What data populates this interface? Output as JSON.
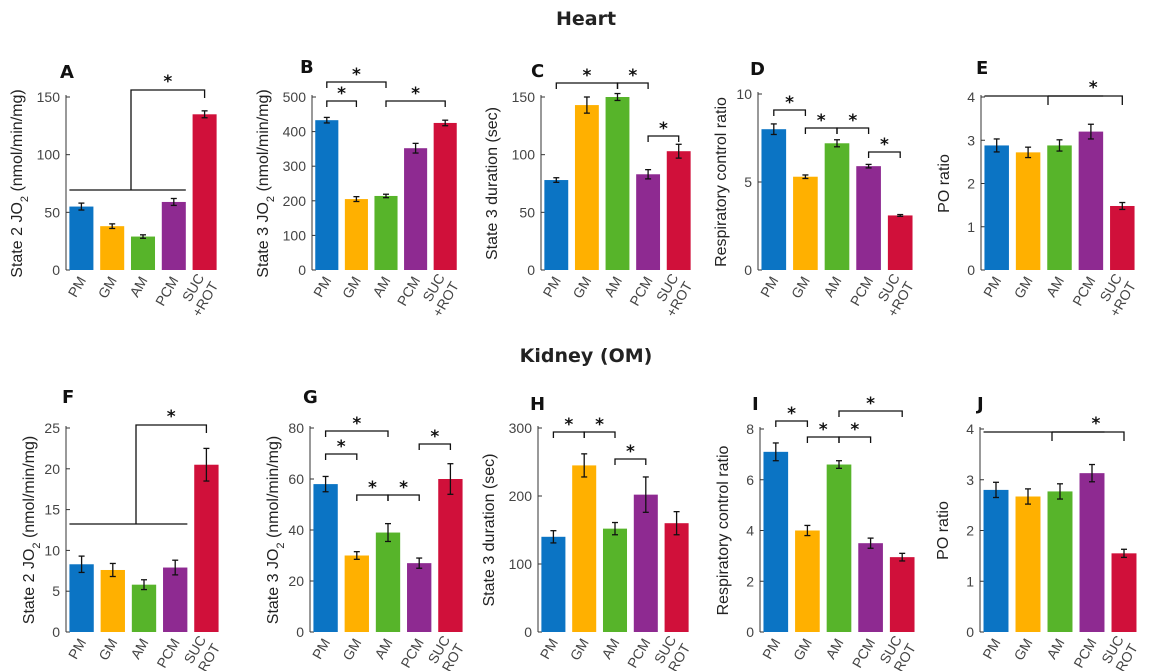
{
  "figure": {
    "heart_title": "Heart",
    "kidney_title": "Kidney (OM)"
  },
  "palette": {
    "PM": "#0b74c4",
    "GM": "#ffb000",
    "AM": "#57b42a",
    "PCM": "#8e2a91",
    "SUC": "#d0103a"
  },
  "chart_data": [
    {
      "id": "A",
      "type": "bar",
      "row": "heart",
      "ylabel": "State 2 JO2 (nmol/min/mg)",
      "categories": [
        "PM",
        "GM",
        "AM",
        "PCM",
        "SUC +ROT"
      ],
      "values": [
        55,
        38,
        29,
        59,
        135
      ],
      "errors": [
        3,
        2,
        1.5,
        3,
        3
      ],
      "ylim": [
        0,
        150
      ],
      "yticks": [
        0,
        50,
        100,
        150
      ],
      "annotations": [
        "*"
      ]
    },
    {
      "id": "B",
      "type": "bar",
      "row": "heart",
      "ylabel": "State 3 JO2 (nmol/min/mg)",
      "categories": [
        "PM",
        "GM",
        "AM",
        "PCM",
        "SUC +ROT"
      ],
      "values": [
        433,
        205,
        214,
        352,
        425
      ],
      "errors": [
        8,
        7,
        5,
        14,
        8
      ],
      "ylim": [
        0,
        500
      ],
      "yticks": [
        0,
        100,
        200,
        300,
        400,
        500
      ],
      "annotations": [
        "*",
        "*",
        "*"
      ]
    },
    {
      "id": "C",
      "type": "bar",
      "row": "heart",
      "ylabel": "State 3 duration (sec)",
      "categories": [
        "PM",
        "GM",
        "AM",
        "PCM",
        "SUC +ROT"
      ],
      "values": [
        78,
        143,
        150,
        83,
        103
      ],
      "errors": [
        2,
        7,
        3,
        4,
        6
      ],
      "ylim": [
        0,
        150
      ],
      "yticks": [
        0,
        50,
        100,
        150
      ],
      "annotations": [
        "*",
        "*",
        "*"
      ]
    },
    {
      "id": "D",
      "type": "bar",
      "row": "heart",
      "ylabel": "Respiratory control ratio",
      "categories": [
        "PM",
        "GM",
        "AM",
        "PCM",
        "SUC +ROT"
      ],
      "values": [
        8.0,
        5.3,
        7.2,
        5.9,
        3.1
      ],
      "errors": [
        0.3,
        0.1,
        0.2,
        0.1,
        0.05
      ],
      "ylim": [
        0,
        10
      ],
      "yticks": [
        0,
        5,
        10
      ],
      "annotations": [
        "*",
        "*",
        "*",
        "*"
      ]
    },
    {
      "id": "E",
      "type": "bar",
      "row": "heart",
      "ylabel": "PO ratio",
      "categories": [
        "PM",
        "GM",
        "AM",
        "PCM",
        "SUC +ROT"
      ],
      "values": [
        2.88,
        2.72,
        2.88,
        3.2,
        1.48
      ],
      "errors": [
        0.15,
        0.12,
        0.13,
        0.17,
        0.08
      ],
      "ylim": [
        0,
        4
      ],
      "yticks": [
        0,
        1,
        2,
        3,
        4
      ],
      "annotations": [
        "*"
      ]
    },
    {
      "id": "F",
      "type": "bar",
      "row": "kidney",
      "ylabel": "State 2 JO2 (nmol/min/mg)",
      "categories": [
        "PM",
        "GM",
        "AM",
        "PCM",
        "SUC +ROT"
      ],
      "values": [
        8.3,
        7.6,
        5.8,
        7.9,
        20.5
      ],
      "errors": [
        1.0,
        0.8,
        0.6,
        0.9,
        2.0
      ],
      "ylim": [
        0,
        25
      ],
      "yticks": [
        0,
        5,
        10,
        15,
        20,
        25
      ],
      "annotations": [
        "*"
      ]
    },
    {
      "id": "G",
      "type": "bar",
      "row": "kidney",
      "ylabel": "State 3 JO2 (nmol/min/mg)",
      "categories": [
        "PM",
        "GM",
        "AM",
        "PCM",
        "SUC +ROT"
      ],
      "values": [
        58,
        30,
        39,
        27,
        60
      ],
      "errors": [
        3,
        1.5,
        3.5,
        2,
        6
      ],
      "ylim": [
        0,
        80
      ],
      "yticks": [
        0,
        20,
        40,
        60,
        80
      ],
      "annotations": [
        "*",
        "*",
        "*",
        "*",
        "*"
      ]
    },
    {
      "id": "H",
      "type": "bar",
      "row": "kidney",
      "ylabel": "State 3 duration (sec)",
      "categories": [
        "PM",
        "GM",
        "AM",
        "PCM",
        "SUC +ROT"
      ],
      "values": [
        140,
        245,
        152,
        202,
        160
      ],
      "errors": [
        9,
        17,
        9,
        26,
        17
      ],
      "ylim": [
        0,
        300
      ],
      "yticks": [
        0,
        100,
        200,
        300
      ],
      "annotations": [
        "*",
        "*",
        "*"
      ]
    },
    {
      "id": "I",
      "type": "bar",
      "row": "kidney",
      "ylabel": "Respiratory control ratio",
      "categories": [
        "PM",
        "GM",
        "AM",
        "PCM",
        "SUC +ROT"
      ],
      "values": [
        7.1,
        4.0,
        6.6,
        3.5,
        2.95
      ],
      "errors": [
        0.35,
        0.2,
        0.15,
        0.2,
        0.15
      ],
      "ylim": [
        0,
        8
      ],
      "yticks": [
        0,
        2,
        4,
        6,
        8
      ],
      "annotations": [
        "*",
        "*",
        "*",
        "*"
      ]
    },
    {
      "id": "J",
      "type": "bar",
      "row": "kidney",
      "ylabel": "PO ratio",
      "categories": [
        "PM",
        "GM",
        "AM",
        "PCM",
        "SUC +ROT"
      ],
      "values": [
        2.8,
        2.67,
        2.77,
        3.13,
        1.55
      ],
      "errors": [
        0.15,
        0.15,
        0.15,
        0.17,
        0.08
      ],
      "ylim": [
        0,
        4
      ],
      "yticks": [
        0,
        1,
        2,
        3,
        4
      ],
      "annotations": [
        "*"
      ]
    }
  ]
}
